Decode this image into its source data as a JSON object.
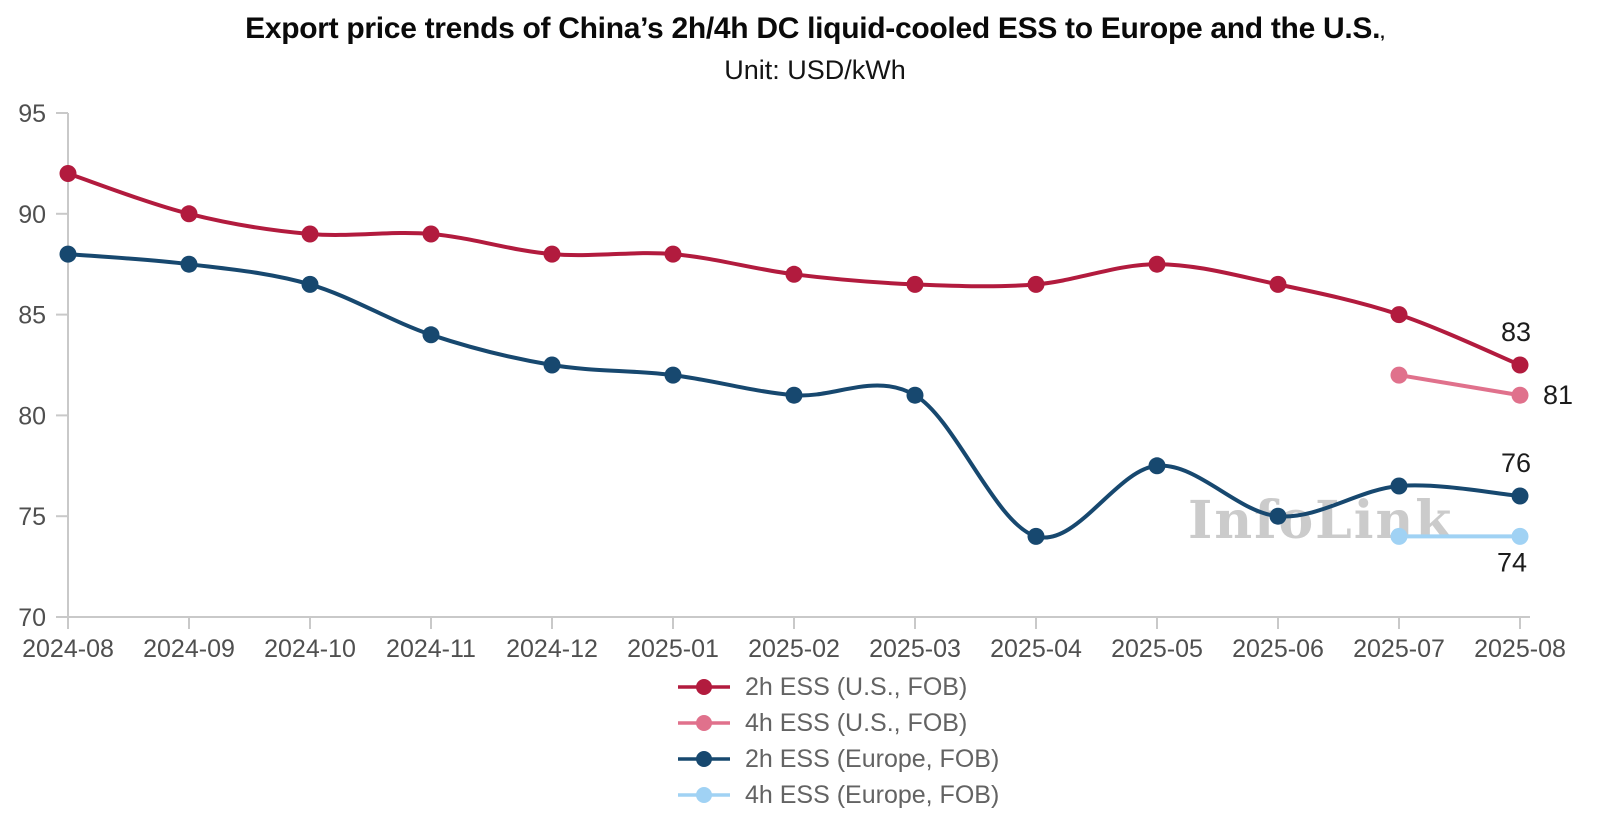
{
  "title": {
    "main": "Export price trends of China’s 2h/4h DC liquid-cooled ESS to Europe and the U.S.",
    "suffix": ",",
    "subtitle": "Unit: USD/kWh"
  },
  "watermark": "InfoLink",
  "chart_data": {
    "type": "line",
    "title": "Export price trends of China’s 2h/4h DC liquid-cooled ESS to Europe and the U.S.",
    "subtitle": "Unit: USD/kWh",
    "unit": "USD/kWh",
    "x": [
      "2024-08",
      "2024-09",
      "2024-10",
      "2024-11",
      "2024-12",
      "2025-01",
      "2025-02",
      "2025-03",
      "2025-04",
      "2025-05",
      "2025-06",
      "2025-07",
      "2025-08"
    ],
    "ylim": [
      70,
      95
    ],
    "yticks": [
      70,
      75,
      80,
      85,
      90,
      95
    ],
    "xlabel": "",
    "ylabel": "",
    "grid": false,
    "line_style": "smooth",
    "legend_position": "bottom",
    "axis_color": "#c9c9c9",
    "series": [
      {
        "id": "2h-ess-us",
        "name": "2h ESS (U.S., FOB)",
        "color": "#b21b3e",
        "values": [
          92,
          90,
          89,
          89,
          88,
          88,
          87,
          86.5,
          86.5,
          87.5,
          86.5,
          85,
          82.5
        ],
        "end_label": {
          "text": "83",
          "placement": "above"
        }
      },
      {
        "id": "4h-ess-us",
        "name": "4h ESS (U.S., FOB)",
        "color": "#e0718c",
        "values": [
          null,
          null,
          null,
          null,
          null,
          null,
          null,
          null,
          null,
          null,
          null,
          82,
          81
        ],
        "end_label": {
          "text": "81",
          "placement": "right"
        }
      },
      {
        "id": "2h-ess-europe",
        "name": "2h ESS (Europe, FOB)",
        "color": "#17486f",
        "values": [
          88,
          87.5,
          86.5,
          84,
          82.5,
          82,
          81,
          81,
          74,
          77.5,
          75,
          76.5,
          76
        ],
        "end_label": {
          "text": "76",
          "placement": "above"
        }
      },
      {
        "id": "4h-ess-europe",
        "name": "4h ESS (Europe, FOB)",
        "color": "#a0d2f4",
        "values": [
          null,
          null,
          null,
          null,
          null,
          null,
          null,
          null,
          null,
          null,
          null,
          74,
          74
        ],
        "end_label": {
          "text": "74",
          "placement": "below"
        }
      }
    ]
  }
}
